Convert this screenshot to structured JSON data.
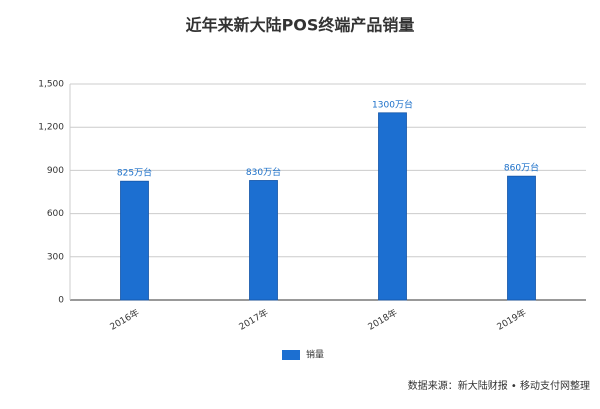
{
  "chart_data": {
    "type": "bar",
    "title": "近年来新大陆POS终端产品销量",
    "categories": [
      "2016年",
      "2017年",
      "2018年",
      "2019年"
    ],
    "series": [
      {
        "name": "销量",
        "color": "#1c6fd1",
        "values": [
          825,
          830,
          1300,
          860
        ],
        "value_labels": [
          "825万台",
          "830万台",
          "1300万台",
          "860万台"
        ]
      }
    ],
    "ylim": [
      0,
      1500
    ],
    "yticks": [
      0,
      300,
      600,
      900,
      {
        "value": 1200,
        "label": "1,200"
      },
      {
        "value": 1500,
        "label": "1,500"
      }
    ],
    "grid": true,
    "legend": "bottom",
    "source": "数据来源：新大陆财报 • 移动支付网整理"
  }
}
